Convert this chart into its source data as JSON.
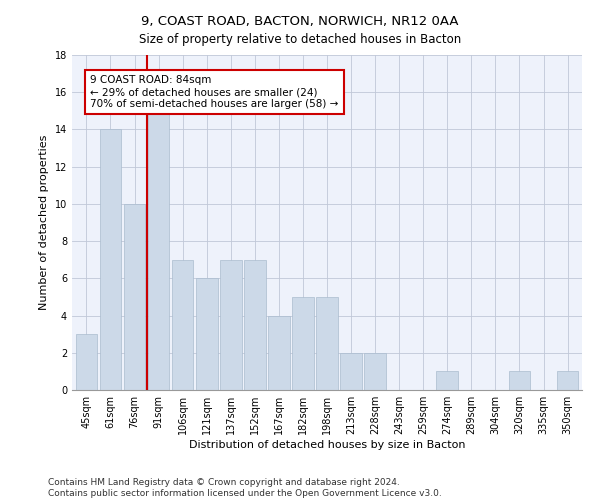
{
  "title": "9, COAST ROAD, BACTON, NORWICH, NR12 0AA",
  "subtitle": "Size of property relative to detached houses in Bacton",
  "xlabel": "Distribution of detached houses by size in Bacton",
  "ylabel": "Number of detached properties",
  "categories": [
    "45sqm",
    "61sqm",
    "76sqm",
    "91sqm",
    "106sqm",
    "121sqm",
    "137sqm",
    "152sqm",
    "167sqm",
    "182sqm",
    "198sqm",
    "213sqm",
    "228sqm",
    "243sqm",
    "259sqm",
    "274sqm",
    "289sqm",
    "304sqm",
    "320sqm",
    "335sqm",
    "350sqm"
  ],
  "values": [
    3,
    14,
    10,
    15,
    7,
    6,
    7,
    7,
    4,
    5,
    5,
    2,
    2,
    0,
    0,
    1,
    0,
    0,
    1,
    0,
    1
  ],
  "bar_color": "#ccd9e8",
  "bar_edge_color": "#aabcce",
  "vline_x_pos": 2.5,
  "vline_color": "#cc0000",
  "annotation_text": "9 COAST ROAD: 84sqm\n← 29% of detached houses are smaller (24)\n70% of semi-detached houses are larger (58) →",
  "annotation_box_color": "#ffffff",
  "annotation_box_edge": "#cc0000",
  "ylim": [
    0,
    18
  ],
  "yticks": [
    0,
    2,
    4,
    6,
    8,
    10,
    12,
    14,
    16,
    18
  ],
  "footer": "Contains HM Land Registry data © Crown copyright and database right 2024.\nContains public sector information licensed under the Open Government Licence v3.0.",
  "bg_color": "#eef2fb",
  "title_fontsize": 9.5,
  "subtitle_fontsize": 8.5,
  "xlabel_fontsize": 8,
  "ylabel_fontsize": 8,
  "tick_fontsize": 7,
  "annotation_fontsize": 7.5,
  "footer_fontsize": 6.5
}
